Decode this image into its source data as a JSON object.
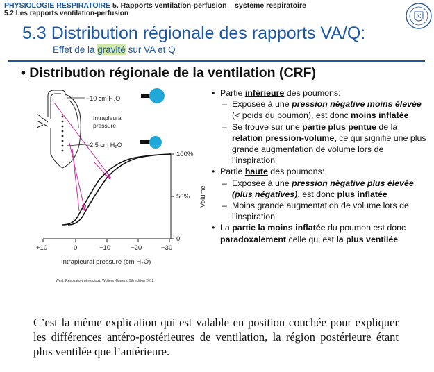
{
  "header": {
    "line1_a": "PHYSIOLOGIE RESPIRATOIRE",
    "line1_b": "5. Rapports ventilation-perfusion – système respiratoire",
    "line2": "5.2 Les rapports ventilation-perfusion"
  },
  "title": "5.3 Distribution régionale des rapports VA/Q:",
  "subtitle": {
    "before": "Effet de la ",
    "highlight": "gravité",
    "after": " sur VA et Q"
  },
  "main_bullet": {
    "underlined": "Distribution régionale de la ventilation",
    "rest": " (CRF)"
  },
  "figure": {
    "label_top": "−10 cm H₂O",
    "label_intrapleural_1": "Intrapleural",
    "label_intrapleural_2": "pressure",
    "label_bottom": "−2.5 cm H₂O",
    "y_ticks": [
      "100%",
      "50%",
      "0"
    ],
    "y_label": "Volume",
    "x_ticks": [
      "+10",
      "0",
      "−10",
      "−20",
      "−30"
    ],
    "x_label": "Intrapleural pressure (cm H₂O)",
    "caption": "West, Respiratory physiology. Wolters Kluwers, 9th edition 2012"
  },
  "points": [
    {
      "pre": "Partie ",
      "u": "inférieure",
      "post": " des poumons",
      "tail": ":"
    },
    {
      "a": "Exposée à une ",
      "bi": "pression négative moins élevée",
      "b": " (< poids du poumon), est donc ",
      "bold": "moins inflatée"
    },
    {
      "a": "Se trouve sur une ",
      "bold1": "partie plus pentue",
      "b": " de la ",
      "bold2": "relation pression-volume,",
      "c": " ce qui signifie une plus grande augmentation de volume lors de l’inspiration"
    },
    {
      "pre": "Partie ",
      "u": "haute",
      "post": " des poumons",
      "tail": ":"
    },
    {
      "a": "Exposée à une ",
      "bi": "pression négative plus élevée (plus négatives)",
      "b": ", est donc ",
      "bold": "plus inflatée"
    },
    {
      "text": "Moins grande augmentation de volume lors de l’inspiration"
    },
    {
      "a": "La ",
      "bold1": "partie la moins inflatée",
      "b": " du poumon est donc ",
      "bold2": "paradoxalement",
      "c": " celle qui est ",
      "bold3": "la plus ventilée"
    }
  ],
  "paragraph": "C’est la même explication qui est valable en position couchée pour expliquer les différences antéro-postérieures de ventilation, la région postérieure étant plus ventilée que l’antérieure."
}
